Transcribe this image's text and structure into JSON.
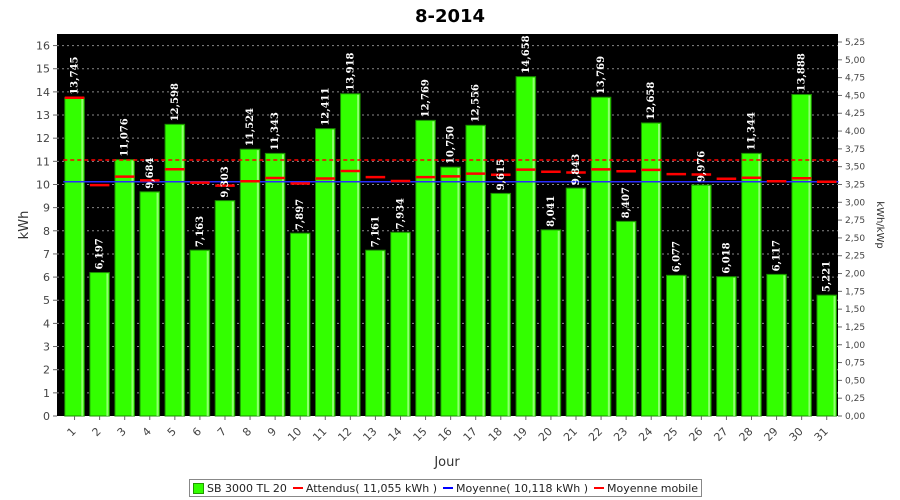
{
  "chart_data": {
    "type": "bar",
    "title": "8-2014",
    "xlabel": "Jour",
    "ylabel": "kWh",
    "y2label": "kWh/kWp",
    "ylim": [
      0,
      16.5
    ],
    "y2lim": [
      0,
      5.3625
    ],
    "yticks": [
      "0",
      "1",
      "2",
      "3",
      "4",
      "5",
      "6",
      "7",
      "8",
      "9",
      "10",
      "11",
      "12",
      "13",
      "14",
      "15",
      "16"
    ],
    "y2ticks": [
      "0,00",
      "0,25",
      "0,50",
      "0,75",
      "1,00",
      "1,25",
      "1,50",
      "1,75",
      "2,00",
      "2,25",
      "2,50",
      "2,75",
      "3,00",
      "3,25",
      "3,50",
      "3,75",
      "4,00",
      "4,25",
      "4,50",
      "4,75",
      "5,00",
      "5,25"
    ],
    "categories": [
      "1",
      "2",
      "3",
      "4",
      "5",
      "6",
      "7",
      "8",
      "9",
      "10",
      "11",
      "12",
      "13",
      "14",
      "15",
      "16",
      "17",
      "18",
      "19",
      "20",
      "21",
      "22",
      "23",
      "24",
      "25",
      "26",
      "27",
      "28",
      "29",
      "30",
      "31"
    ],
    "values": [
      13.745,
      6.197,
      11.076,
      9.684,
      12.598,
      7.163,
      9.303,
      11.524,
      11.343,
      7.897,
      12.411,
      13.918,
      7.161,
      7.934,
      12.769,
      10.75,
      12.556,
      9.615,
      14.658,
      8.041,
      9.843,
      13.769,
      8.407,
      12.658,
      6.077,
      9.976,
      6.018,
      11.344,
      6.117,
      13.888,
      5.221
    ],
    "value_labels": [
      "13,745",
      "6,197",
      "11,076",
      "9,684",
      "12,598",
      "7,163",
      "9,303",
      "11,524",
      "11,343",
      "7,897",
      "12,411",
      "13,918",
      "7,161",
      "7,934",
      "12,769",
      "10,750",
      "12,556",
      "9,615",
      "14,658",
      "8,041",
      "9,843",
      "13,769",
      "8,407",
      "12,658",
      "6,077",
      "9,976",
      "6,018",
      "11,344",
      "6,117",
      "13,888",
      "5,221"
    ],
    "expected": 11.055,
    "average": 10.118,
    "moving_average": [
      13.745,
      9.97,
      10.34,
      10.18,
      10.66,
      10.08,
      9.95,
      10.14,
      10.28,
      10.04,
      10.26,
      10.58,
      10.32,
      10.15,
      10.32,
      10.35,
      10.47,
      10.42,
      10.64,
      10.55,
      10.52,
      10.65,
      10.57,
      10.63,
      10.45,
      10.43,
      10.25,
      10.29,
      10.14,
      10.27,
      10.12
    ],
    "series": [
      {
        "name": "SB 3000 TL 20",
        "color": "#33ff00"
      },
      {
        "name": "Attendus( 11,055 kWh )",
        "color": "#ff0000"
      },
      {
        "name": "Moyenne( 10,118 kWh )",
        "color": "#0000ff"
      },
      {
        "name": "Moyenne mobile",
        "color": "#ff0000"
      }
    ],
    "grid": true,
    "legend_position": "bottom",
    "colors": {
      "plot_bg": "#000000",
      "bar": "#33ff00",
      "bar_edge": "#1a8c00",
      "grid": "#888888"
    }
  }
}
